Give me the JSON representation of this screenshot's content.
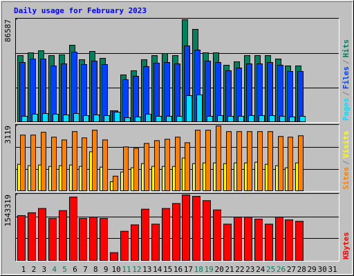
{
  "title": "Daily usage for February 2023",
  "chart_data": [
    {
      "type": "bar",
      "ylim": [
        0,
        86587
      ],
      "yticks": [
        86587
      ],
      "legend_separator": "/",
      "series": [
        {
          "name": "Pages",
          "color": "#00e0ff",
          "values": [
            4680,
            6435,
            7020,
            6435,
            5850,
            7020,
            5265,
            5850,
            5265,
            8190,
            3510,
            4095,
            6435,
            4680,
            4680,
            4680,
            22230,
            22815,
            4680,
            5265,
            4680,
            4680,
            5265,
            5265,
            5265,
            4680,
            4095,
            4680,
            null,
            null,
            null
          ]
        },
        {
          "name": "Files",
          "color": "#0040ff",
          "values": [
            50310,
            53235,
            53235,
            47385,
            49140,
            59085,
            48555,
            51480,
            48555,
            9360,
            35685,
            38610,
            46800,
            49725,
            50310,
            49140,
            64350,
            60840,
            51480,
            50310,
            43290,
            45630,
            49140,
            49140,
            50310,
            47970,
            42705,
            42705,
            null,
            null,
            null
          ]
        },
        {
          "name": "Hits",
          "color": "#00805c",
          "values": [
            56160,
            58500,
            60260,
            56160,
            56745,
            64935,
            52650,
            59670,
            53820,
            9360,
            39780,
            43290,
            52650,
            56160,
            57915,
            56160,
            86587,
            78390,
            58500,
            58500,
            47970,
            50900,
            56160,
            56160,
            56160,
            53235,
            47385,
            47385,
            null,
            null,
            null
          ]
        }
      ]
    },
    {
      "type": "bar",
      "ylim": [
        0,
        3119
      ],
      "yticks": [
        3119
      ],
      "legend_separator": "/",
      "series": [
        {
          "name": "Sites",
          "color": "#ff8000",
          "values": [
            2680,
            2680,
            2814,
            2580,
            2446,
            2848,
            2546,
            2915,
            2446,
            704,
            2111,
            2044,
            2278,
            2412,
            2479,
            2580,
            2312,
            2915,
            2915,
            3119,
            2848,
            2848,
            2848,
            2848,
            2848,
            2613,
            2580,
            2647,
            null,
            null,
            null
          ]
        },
        {
          "name": "Visits",
          "color": "#ffff00",
          "values": [
            1273,
            1206,
            1240,
            1173,
            1206,
            1240,
            1173,
            1876,
            1139,
            436,
            905,
            1106,
            1307,
            1173,
            1173,
            1173,
            1575,
            1307,
            1340,
            1340,
            1307,
            1340,
            1340,
            1374,
            1273,
            1206,
            1106,
            1340,
            null,
            null,
            null
          ]
        }
      ]
    },
    {
      "type": "bar",
      "ylim": [
        0,
        1543319
      ],
      "yticks": [
        1543319
      ],
      "categories": [
        "1",
        "2",
        "3",
        "4",
        "5",
        "6",
        "7",
        "8",
        "9",
        "10",
        "11",
        "12",
        "13",
        "14",
        "15",
        "16",
        "17",
        "18",
        "19",
        "20",
        "21",
        "22",
        "23",
        "24",
        "25",
        "26",
        "27",
        "28",
        "29",
        "30",
        "31"
      ],
      "highlighted_categories": [
        3,
        4,
        10,
        11,
        17,
        18,
        24,
        25
      ],
      "highlight_color": "#00805c",
      "series": [
        {
          "name": "KBytes",
          "color": "#ff0000",
          "values": [
            1056825,
            1123925,
            1224575,
            989725,
            1174250,
            1492975,
            989725,
            1023275,
            989725,
            184525,
            687775,
            838750,
            1207800,
            855525,
            1224575,
            1342000,
            1543319,
            1509750,
            1409100,
            1191025,
            855525,
            1023275,
            1023275,
            972950,
            855525,
            1023275,
            956175,
            922625,
            null,
            null,
            null
          ]
        }
      ]
    }
  ]
}
